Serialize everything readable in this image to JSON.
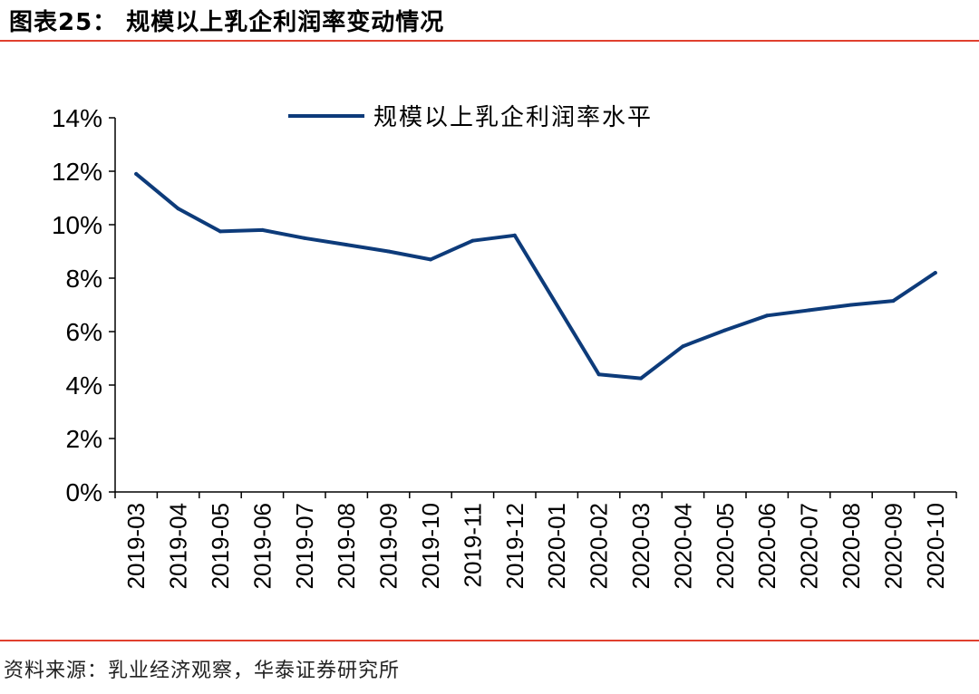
{
  "figure": {
    "title": "图表25：   规模以上乳企利润率变动情况",
    "source": "资料来源：乳业经济观察，华泰证券研究所",
    "rule_color": "#E0402E",
    "line_color": "#0D3B7A"
  },
  "chart_data": {
    "type": "line",
    "categories": [
      "2019-03",
      "2019-04",
      "2019-05",
      "2019-06",
      "2019-07",
      "2019-08",
      "2019-09",
      "2019-10",
      "2019-11",
      "2019-12",
      "2020-01",
      "2020-02",
      "2020-03",
      "2020-04",
      "2020-05",
      "2020-06",
      "2020-07",
      "2020-08",
      "2020-09",
      "2020-10"
    ],
    "series": [
      {
        "name": "规模以上乳企利润率水平",
        "values": [
          11.9,
          10.6,
          9.75,
          9.8,
          9.5,
          9.25,
          9.0,
          8.7,
          9.4,
          9.6,
          null,
          4.4,
          4.25,
          5.45,
          6.05,
          6.6,
          6.8,
          7.0,
          7.15,
          8.2
        ]
      }
    ],
    "ylim": [
      0,
      14
    ],
    "yticks": [
      0,
      2,
      4,
      6,
      8,
      10,
      12,
      14
    ],
    "ytick_labels": [
      "0%",
      "2%",
      "4%",
      "6%",
      "8%",
      "10%",
      "12%",
      "14%"
    ],
    "legend_position": "top-center",
    "grid": false
  }
}
